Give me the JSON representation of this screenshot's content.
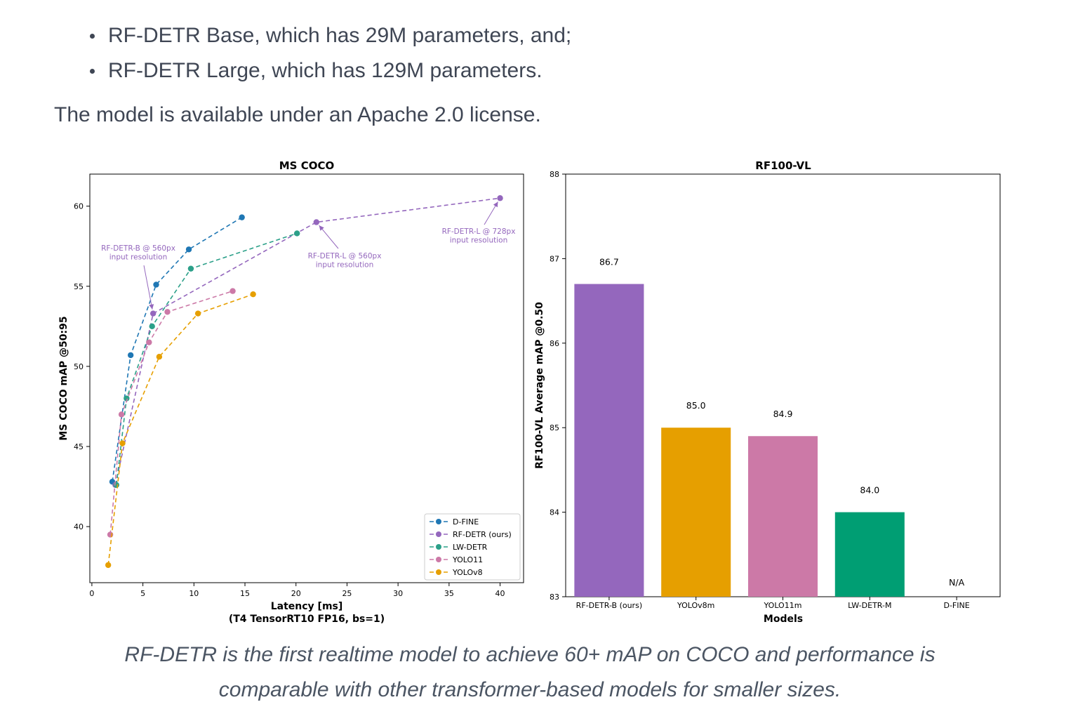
{
  "article": {
    "bullets": [
      "RF-DETR Base, which has 29M parameters, and;",
      "RF-DETR Large, which has 129M parameters."
    ],
    "paragraph": "The model is available under an Apache 2.0 license.",
    "caption_lines": [
      "RF-DETR is the first realtime model to achieve 60+ mAP on COCO and performance is",
      "comparable with other transformer-based models for smaller sizes."
    ]
  },
  "chart_data": [
    {
      "type": "line",
      "title": "MS COCO",
      "xlabel": "Latency [ms]",
      "xlabel_line2": "(T4 TensorRT10 FP16, bs=1)",
      "ylabel": "MS COCO mAP @50:95",
      "xlim": [
        -0.2,
        42.3
      ],
      "ylim": [
        36.5,
        62.0
      ],
      "xticks": [
        0,
        5,
        10,
        15,
        20,
        25,
        30,
        35,
        40
      ],
      "yticks": [
        40,
        45,
        50,
        55,
        60
      ],
      "grid": false,
      "legend_position": "lower-right",
      "series": [
        {
          "name": "D-FINE",
          "color": "#1f77b4",
          "x": [
            2.0,
            3.8,
            6.3,
            9.5,
            14.7
          ],
          "y": [
            42.8,
            50.7,
            55.1,
            57.3,
            59.3
          ]
        },
        {
          "name": "RF-DETR (ours)",
          "color": "#9467bd",
          "x": [
            2.3,
            6.0,
            22.0,
            40.0
          ],
          "y": [
            42.6,
            53.3,
            59.0,
            60.5
          ]
        },
        {
          "name": "LW-DETR",
          "color": "#2ca089",
          "x": [
            2.4,
            3.4,
            5.9,
            9.7,
            20.1
          ],
          "y": [
            42.6,
            48.0,
            52.5,
            56.1,
            58.3
          ]
        },
        {
          "name": "YOLO11",
          "color": "#cc79a7",
          "x": [
            1.8,
            2.9,
            5.6,
            7.4,
            13.8
          ],
          "y": [
            39.5,
            47.0,
            51.5,
            53.4,
            54.7
          ]
        },
        {
          "name": "YOLOv8",
          "color": "#e69f00",
          "x": [
            1.6,
            3.0,
            6.6,
            10.4,
            15.8
          ],
          "y": [
            37.6,
            45.2,
            50.6,
            53.3,
            54.5
          ]
        }
      ],
      "annotations": [
        {
          "text_lines": [
            "RF-DETR-B @ 560px",
            "input resolution"
          ],
          "target": [
            6.0,
            53.3
          ]
        },
        {
          "text_lines": [
            "RF-DETR-L @ 560px",
            "input resolution"
          ],
          "target": [
            22.0,
            59.0
          ]
        },
        {
          "text_lines": [
            "RF-DETR-L @ 728px",
            "input resolution"
          ],
          "target": [
            40.0,
            60.5
          ]
        }
      ]
    },
    {
      "type": "bar",
      "title": "RF100-VL",
      "xlabel": "Models",
      "ylabel": "RF100-VL Average mAP @0.50",
      "ylim": [
        83,
        88
      ],
      "yticks": [
        83,
        84,
        85,
        86,
        87,
        88
      ],
      "grid": false,
      "categories": [
        "RF-DETR-B (ours)",
        "YOLOv8m",
        "YOLO11m",
        "LW-DETR-M",
        "D-FINE"
      ],
      "values": [
        86.7,
        85.0,
        84.9,
        84.0,
        null
      ],
      "value_labels": [
        "86.7",
        "85.0",
        "84.9",
        "84.0",
        "N/A"
      ],
      "colors": [
        "#9467bd",
        "#e69f00",
        "#cc79a7",
        "#009e73",
        "#ffffff"
      ]
    }
  ]
}
